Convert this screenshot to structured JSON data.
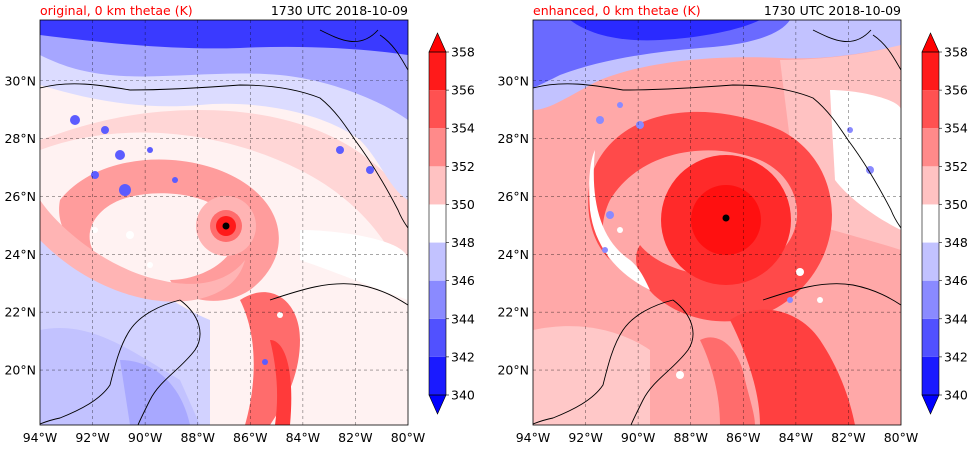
{
  "chart_data": [
    {
      "type": "heatmap",
      "title_left": "original, 0 km thetae (K)",
      "title_right": "1730 UTC 2018-10-09",
      "x_tick_labels": [
        "94°W",
        "92°W",
        "90°W",
        "88°W",
        "86°W",
        "84°W",
        "82°W",
        "80°W"
      ],
      "x_ticks": [
        -94,
        -92,
        -90,
        -88,
        -86,
        -84,
        -82,
        -80
      ],
      "y_tick_labels": [
        "20°N",
        "22°N",
        "24°N",
        "26°N",
        "28°N",
        "30°N"
      ],
      "y_ticks": [
        20,
        22,
        24,
        26,
        28,
        30
      ],
      "xlim": [
        -94,
        -80
      ],
      "ylim": [
        18.1,
        32.1
      ],
      "grid": true,
      "storm_center": {
        "lon": -87.1,
        "lat": 25.0
      },
      "colorbar": {
        "levels": [
          340,
          342,
          344,
          346,
          348,
          350,
          352,
          354,
          356,
          358
        ],
        "labels": [
          "340",
          "342",
          "344",
          "346",
          "348",
          "350",
          "352",
          "354",
          "356",
          "358"
        ],
        "colors": [
          "#1a1aff",
          "#5151ff",
          "#8a8aff",
          "#c2c2ff",
          "#ffffff",
          "#ffc2c2",
          "#ff8a8a",
          "#ff5151",
          "#ff1a1a"
        ],
        "extend": "both",
        "under_color": "#0000ff",
        "over_color": "#ff0000"
      }
    },
    {
      "type": "heatmap",
      "title_left": "enhanced, 0 km thetae (K)",
      "title_right": "1730 UTC 2018-10-09",
      "x_tick_labels": [
        "94°W",
        "92°W",
        "90°W",
        "88°W",
        "86°W",
        "84°W",
        "82°W",
        "80°W"
      ],
      "x_ticks": [
        -94,
        -92,
        -90,
        -88,
        -86,
        -84,
        -82,
        -80
      ],
      "y_tick_labels": [
        "20°N",
        "22°N",
        "24°N",
        "26°N",
        "28°N",
        "30°N"
      ],
      "y_ticks": [
        20,
        22,
        24,
        26,
        28,
        30
      ],
      "xlim": [
        -94,
        -80
      ],
      "ylim": [
        18.1,
        32.1
      ],
      "grid": true,
      "storm_center": {
        "lon": -86.8,
        "lat": 25.3
      },
      "colorbar": {
        "levels": [
          340,
          342,
          344,
          346,
          348,
          350,
          352,
          354,
          356,
          358
        ],
        "labels": [
          "340",
          "342",
          "344",
          "346",
          "348",
          "350",
          "352",
          "354",
          "356",
          "358"
        ],
        "colors": [
          "#1a1aff",
          "#5151ff",
          "#8a8aff",
          "#c2c2ff",
          "#ffffff",
          "#ffc2c2",
          "#ff8a8a",
          "#ff5151",
          "#ff1a1a"
        ],
        "extend": "both",
        "under_color": "#0000ff",
        "over_color": "#ff0000"
      }
    }
  ]
}
